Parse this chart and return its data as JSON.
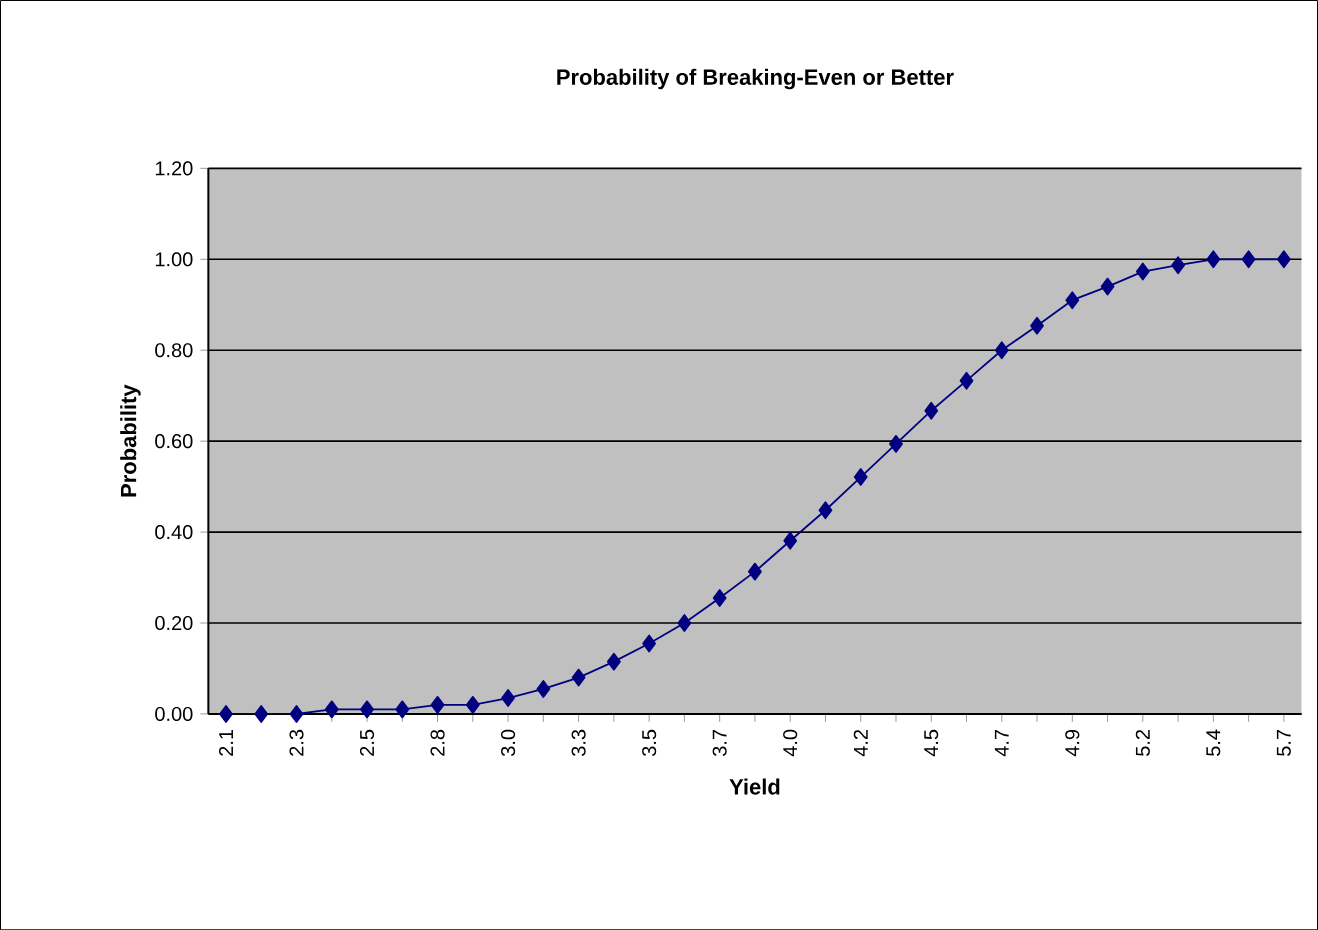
{
  "chart_data": {
    "type": "line",
    "title": "Probability of Breaking-Even or Better",
    "xlabel": "Yield",
    "ylabel": "Probability",
    "categories": [
      "2.1",
      null,
      "2.3",
      null,
      "2.5",
      null,
      "2.8",
      null,
      "3.0",
      null,
      "3.3",
      null,
      "3.5",
      null,
      "3.7",
      null,
      "4.0",
      null,
      "4.2",
      null,
      "4.5",
      null,
      "4.7",
      null,
      "4.9",
      null,
      "5.2",
      null,
      "5.4",
      null,
      "5.7"
    ],
    "series": [
      {
        "color": "#000080",
        "values": [
          0,
          0,
          0,
          0.01,
          0.01,
          0.01,
          0.02,
          0.02,
          0.035,
          0.055,
          0.08,
          0.115,
          0.155,
          0.2,
          0.255,
          0.313,
          0.381,
          0.448,
          0.521,
          0.594,
          0.667,
          0.733,
          0.8,
          0.854,
          0.91,
          0.94,
          0.973,
          0.987,
          1.0,
          1.0,
          1.0
        ]
      }
    ],
    "ylim": [
      0,
      1.2
    ],
    "yticks": [
      {
        "value": 0,
        "label": "0.00"
      },
      {
        "value": 0.2,
        "label": "0.20"
      },
      {
        "value": 0.4,
        "label": "0.40"
      },
      {
        "value": 0.6,
        "label": "0.60"
      },
      {
        "value": 0.8,
        "label": "0.80"
      },
      {
        "value": 1.0,
        "label": "1.00"
      },
      {
        "value": 1.2,
        "label": "1.20"
      }
    ],
    "grid": "y",
    "marker": "diamond",
    "line_style": "solid"
  }
}
